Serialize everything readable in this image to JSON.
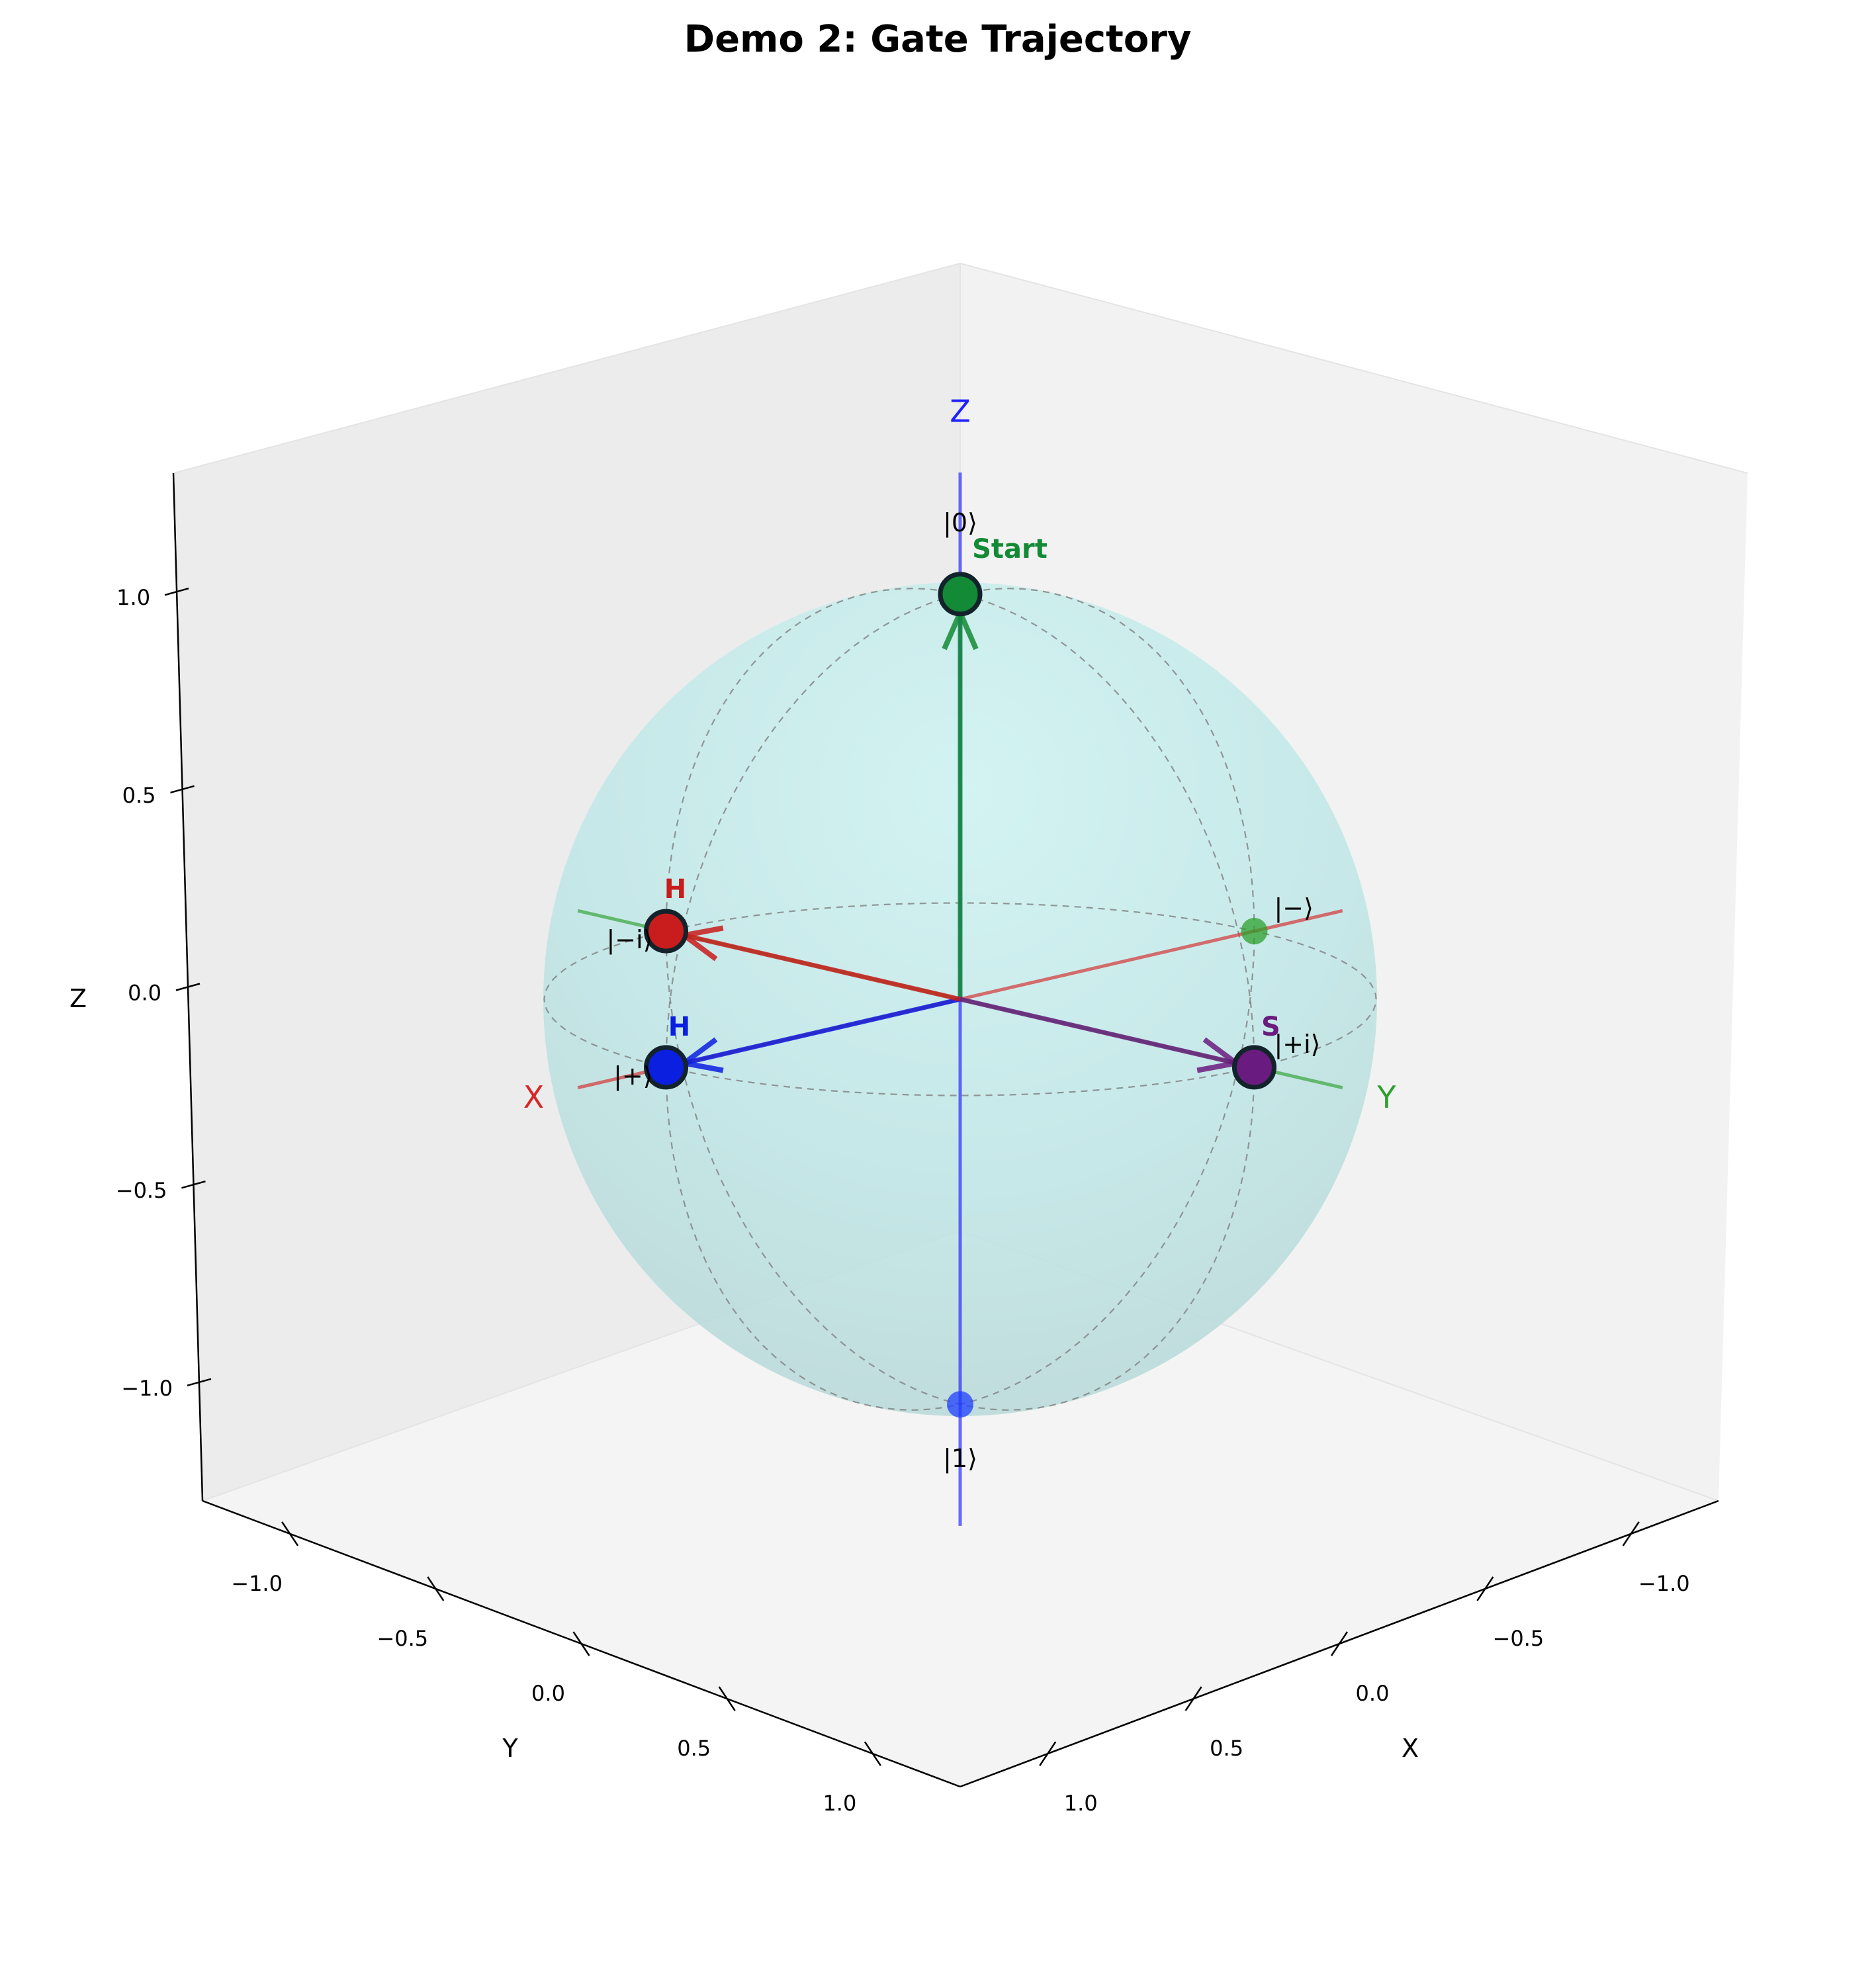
{
  "chart_data": {
    "type": "scatter",
    "projection": "3d",
    "title": "Demo 2: Gate Trajectory",
    "axes": {
      "xlabel": "X",
      "ylabel": "Y",
      "zlabel": "Z",
      "xlim": [
        -1.3,
        1.3
      ],
      "ylim": [
        -1.3,
        1.3
      ],
      "zlim": [
        -1.3,
        1.3
      ],
      "x_ticks": [
        {
          "v": -1.0,
          "label": "−1.0"
        },
        {
          "v": -0.5,
          "label": "−0.5"
        },
        {
          "v": 0.0,
          "label": "0.0"
        },
        {
          "v": 0.5,
          "label": "0.5"
        },
        {
          "v": 1.0,
          "label": "1.0"
        }
      ],
      "y_ticks": [
        {
          "v": -1.0,
          "label": "−1.0"
        },
        {
          "v": -0.5,
          "label": "−0.5"
        },
        {
          "v": 0.0,
          "label": "0.0"
        },
        {
          "v": 0.5,
          "label": "0.5"
        },
        {
          "v": 1.0,
          "label": "1.0"
        }
      ],
      "z_ticks": [
        {
          "v": -1.0,
          "label": "−1.0"
        },
        {
          "v": -0.5,
          "label": "−0.5"
        },
        {
          "v": 0.0,
          "label": "0.0"
        },
        {
          "v": 0.5,
          "label": "0.5"
        },
        {
          "v": 1.0,
          "label": "1.0"
        }
      ],
      "grid": false
    },
    "sphere": {
      "radius": 1.0,
      "color": "#b2ebeb",
      "wire_color": "#808080"
    },
    "bloch_axes": [
      {
        "name": "X",
        "label": "X",
        "color": "#d62728",
        "from": [
          -1.3,
          0,
          0
        ],
        "to": [
          1.3,
          0,
          0
        ],
        "label_at": [
          1.45,
          0,
          0
        ]
      },
      {
        "name": "Y",
        "label": "Y",
        "color": "#2ca02c",
        "from": [
          0,
          -1.3,
          0
        ],
        "to": [
          0,
          1.3,
          0
        ],
        "label_at": [
          0,
          1.45,
          0
        ]
      },
      {
        "name": "Z",
        "label": "Z",
        "color": "#1f1fff",
        "from": [
          0,
          0,
          -1.3
        ],
        "to": [
          0,
          0,
          1.3
        ],
        "label_at": [
          0,
          0,
          1.45
        ]
      }
    ],
    "basis_states": [
      {
        "label": "|0⟩",
        "pos": [
          0,
          0,
          1
        ],
        "color": "#2ca02c",
        "label_offset": "above"
      },
      {
        "label": "|1⟩",
        "pos": [
          0,
          0,
          -1
        ],
        "color": "#1f3fff",
        "label_offset": "below"
      },
      {
        "label": "|+⟩",
        "pos": [
          1,
          0,
          0
        ],
        "color": "#d62728",
        "label_offset": "left"
      },
      {
        "label": "|−⟩",
        "pos": [
          -1,
          0,
          0
        ],
        "color": "#2ca02c",
        "label_offset": "right"
      },
      {
        "label": "|+i⟩",
        "pos": [
          0,
          1,
          0
        ],
        "color": "#2ca02c",
        "label_offset": "right"
      },
      {
        "label": "|−i⟩",
        "pos": [
          0,
          -1,
          0
        ],
        "color": "#2ca02c",
        "label_offset": "left"
      }
    ],
    "trajectory": [
      {
        "step": "Start",
        "label": "Start",
        "pos": [
          0,
          0,
          1
        ],
        "color": "#138a36"
      },
      {
        "step": "H",
        "label": "H",
        "pos": [
          1,
          0,
          0
        ],
        "color": "#0a1fe0"
      },
      {
        "step": "S",
        "label": "S",
        "pos": [
          0,
          1,
          0
        ],
        "color": "#6a1b7f"
      },
      {
        "step": "H",
        "label": "H",
        "pos": [
          0,
          -1,
          0
        ],
        "color": "#c91c1c"
      }
    ]
  }
}
